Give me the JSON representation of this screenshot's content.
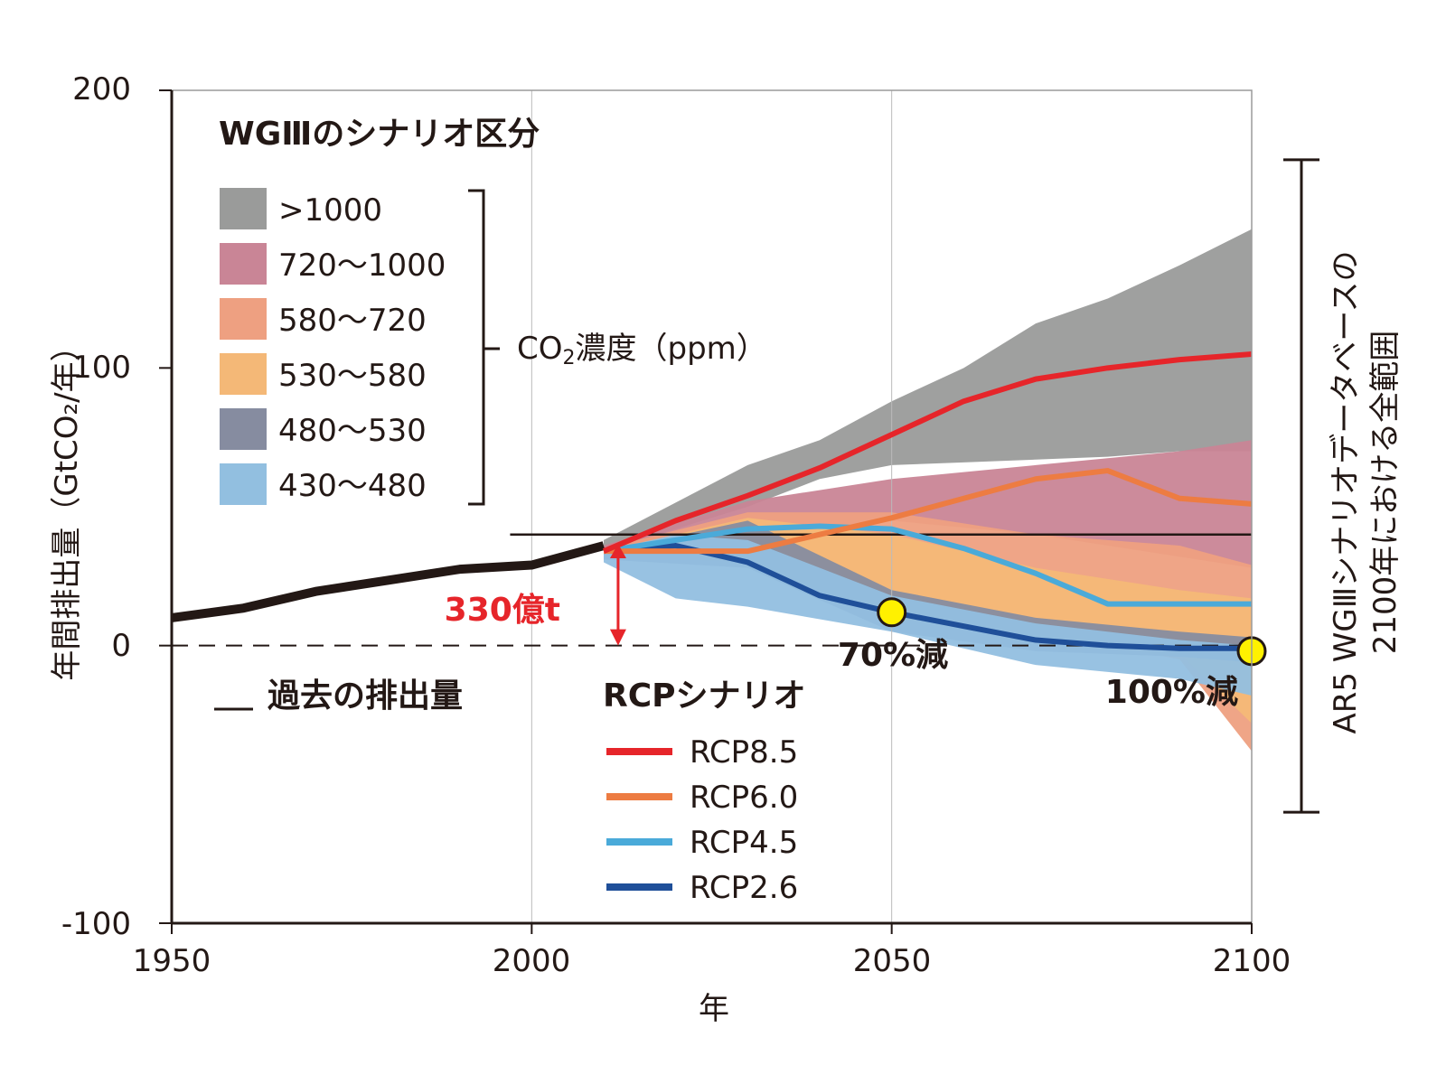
{
  "chart_data": {
    "type": "area",
    "xlabel": "年",
    "ylabel": "年間排出量（GtCO₂/年）",
    "xlim": [
      1950,
      2100
    ],
    "ylim": [
      -100,
      200
    ],
    "x_ticks": [
      "1950",
      "2000",
      "2050",
      "2100"
    ],
    "y_ticks": [
      "200",
      "100",
      "0",
      "-100"
    ],
    "historical": {
      "label": "過去の排出量",
      "x": [
        1950,
        1960,
        1970,
        1980,
        1990,
        2000,
        2010
      ],
      "y": [
        10,
        13.5,
        19.5,
        23.5,
        27.5,
        29,
        36
      ]
    },
    "wg3_legend_title": "WGⅢのシナリオ区分",
    "concentration_label": "CO",
    "concentration_sub": "2",
    "concentration_unit": "濃度（ppm）",
    "categories": [
      {
        "label": ">1000",
        "color": "#9a9b9a",
        "x": [
          2010,
          2030,
          2040,
          2050,
          2060,
          2070,
          2080,
          2090,
          2100
        ],
        "upper": [
          38,
          65,
          74,
          88,
          100,
          116,
          125,
          137,
          150
        ],
        "lower": [
          34,
          50,
          60,
          65,
          66,
          67,
          68,
          70,
          70
        ]
      },
      {
        "label": "720〜1000",
        "color": "#c98596",
        "x": [
          2010,
          2030,
          2050,
          2070,
          2090,
          2100
        ],
        "upper": [
          36,
          52,
          60,
          65,
          70,
          74
        ],
        "lower": [
          33,
          40,
          45,
          40,
          32,
          28
        ]
      },
      {
        "label": "580〜720",
        "color": "#eea081",
        "x": [
          2010,
          2030,
          2050,
          2070,
          2090,
          2100
        ],
        "upper": [
          35,
          48,
          48,
          40,
          36,
          29
        ],
        "lower": [
          32,
          35,
          15,
          5,
          -5,
          -38
        ]
      },
      {
        "label": "530〜580",
        "color": "#f4b877",
        "x": [
          2010,
          2030,
          2050,
          2070,
          2090,
          2100
        ],
        "upper": [
          34,
          46,
          40,
          28,
          20,
          17
        ],
        "lower": [
          32,
          30,
          10,
          2,
          -3,
          -28
        ]
      },
      {
        "label": "480〜530",
        "color": "#868ca0",
        "x": [
          2010,
          2030,
          2050,
          2070,
          2090,
          2100
        ],
        "upper": [
          34,
          45,
          20,
          10,
          5,
          3
        ],
        "lower": [
          31,
          28,
          5,
          -2,
          -4,
          -6
        ]
      },
      {
        "label": "430〜480",
        "color": "#92bfe0",
        "x": [
          2010,
          2020,
          2030,
          2050,
          2070,
          2090,
          2100
        ],
        "upper": [
          34,
          40,
          38,
          18,
          8,
          2,
          0
        ],
        "lower": [
          30,
          17,
          14,
          5,
          -7,
          -12,
          -18
        ]
      }
    ],
    "series": [
      {
        "name": "RCP8.5",
        "color": "#e6252a",
        "x": [
          2010,
          2020,
          2030,
          2040,
          2050,
          2060,
          2070,
          2080,
          2090,
          2100
        ],
        "y": [
          34,
          45,
          54,
          64,
          76,
          88,
          96,
          100,
          103,
          105
        ]
      },
      {
        "name": "RCP6.0",
        "color": "#ed7c42",
        "x": [
          2010,
          2020,
          2030,
          2040,
          2050,
          2060,
          2070,
          2080,
          2090,
          2100
        ],
        "y": [
          34,
          34,
          34,
          40,
          46,
          53,
          60,
          63,
          53,
          51
        ]
      },
      {
        "name": "RCP4.5",
        "color": "#4aaad9",
        "x": [
          2010,
          2020,
          2030,
          2040,
          2050,
          2060,
          2070,
          2080,
          2090,
          2100
        ],
        "y": [
          34,
          38,
          42,
          43,
          42,
          35,
          26,
          15,
          15,
          15
        ]
      },
      {
        "name": "RCP2.6",
        "color": "#1f4f99",
        "x": [
          2010,
          2020,
          2030,
          2040,
          2050,
          2060,
          2070,
          2080,
          2090,
          2100
        ],
        "y": [
          34,
          36,
          30,
          18,
          12,
          7,
          2,
          0,
          -1,
          -1
        ]
      }
    ],
    "rcp_legend_title": "RCPシナリオ",
    "reference_line": {
      "y": 40
    },
    "reduction_arrow": {
      "x": 2012,
      "from": 0,
      "to": 36,
      "label": "330億t",
      "color": "#e6252a"
    },
    "markers": [
      {
        "x": 2050,
        "y": 12,
        "label": "70%減",
        "color": "#fff100"
      },
      {
        "x": 2100,
        "y": -2,
        "label": "100%減",
        "color": "#fff100"
      }
    ],
    "range_bar": {
      "from": -60,
      "to": 175,
      "label_line1": "AR5 WGⅢシナリオデータベースの",
      "label_line2": "2100年における全範囲"
    }
  }
}
